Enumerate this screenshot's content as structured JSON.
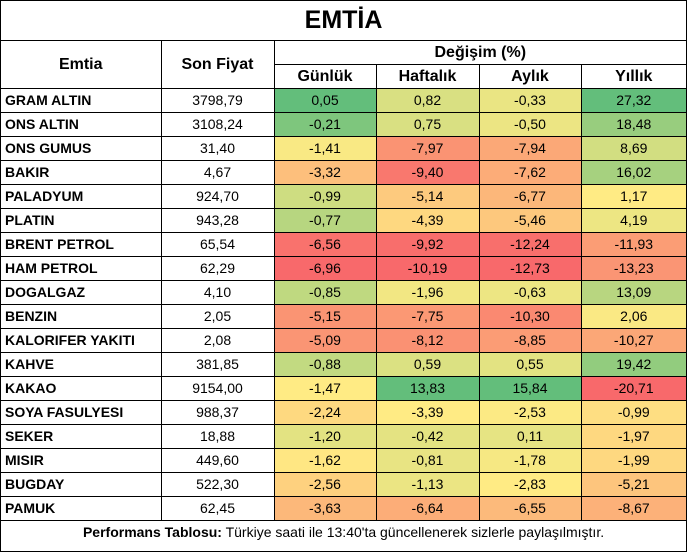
{
  "title": "EMTİA",
  "headers": {
    "commodity": "Emtia",
    "price": "Son Fiyat",
    "change_group": "Değişim (%)",
    "daily": "Günlük",
    "weekly": "Haftalık",
    "monthly": "Aylık",
    "yearly": "Yıllık"
  },
  "rows": [
    {
      "name": "GRAM ALTIN",
      "price": "3798,79",
      "daily": "0,05",
      "weekly": "0,82",
      "monthly": "-0,33",
      "yearly": "27,32"
    },
    {
      "name": "ONS ALTIN",
      "price": "3108,24",
      "daily": "-0,21",
      "weekly": "0,75",
      "monthly": "-0,50",
      "yearly": "18,48"
    },
    {
      "name": "ONS GUMUS",
      "price": "31,40",
      "daily": "-1,41",
      "weekly": "-7,97",
      "monthly": "-7,94",
      "yearly": "8,69"
    },
    {
      "name": "BAKIR",
      "price": "4,67",
      "daily": "-3,32",
      "weekly": "-9,40",
      "monthly": "-7,62",
      "yearly": "16,02"
    },
    {
      "name": "PALADYUM",
      "price": "924,70",
      "daily": "-0,99",
      "weekly": "-5,14",
      "monthly": "-6,77",
      "yearly": "1,17"
    },
    {
      "name": "PLATIN",
      "price": "943,28",
      "daily": "-0,77",
      "weekly": "-4,39",
      "monthly": "-5,46",
      "yearly": "4,19"
    },
    {
      "name": "BRENT PETROL",
      "price": "65,54",
      "daily": "-6,56",
      "weekly": "-9,92",
      "monthly": "-12,24",
      "yearly": "-11,93"
    },
    {
      "name": "HAM PETROL",
      "price": "62,29",
      "daily": "-6,96",
      "weekly": "-10,19",
      "monthly": "-12,73",
      "yearly": "-13,23"
    },
    {
      "name": "DOGALGAZ",
      "price": "4,10",
      "daily": "-0,85",
      "weekly": "-1,96",
      "monthly": "-0,63",
      "yearly": "13,09"
    },
    {
      "name": "BENZIN",
      "price": "2,05",
      "daily": "-5,15",
      "weekly": "-7,75",
      "monthly": "-10,30",
      "yearly": "2,06"
    },
    {
      "name": "KALORIFER YAKITI",
      "price": "2,08",
      "daily": "-5,09",
      "weekly": "-8,12",
      "monthly": "-8,85",
      "yearly": "-10,27"
    },
    {
      "name": "KAHVE",
      "price": "381,85",
      "daily": "-0,88",
      "weekly": "0,59",
      "monthly": "0,55",
      "yearly": "19,42"
    },
    {
      "name": "KAKAO",
      "price": "9154,00",
      "daily": "-1,47",
      "weekly": "13,83",
      "monthly": "15,84",
      "yearly": "-20,71"
    },
    {
      "name": "SOYA FASULYESI",
      "price": "988,37",
      "daily": "-2,24",
      "weekly": "-3,39",
      "monthly": "-2,53",
      "yearly": "-0,99"
    },
    {
      "name": "SEKER",
      "price": "18,88",
      "daily": "-1,20",
      "weekly": "-0,42",
      "monthly": "0,11",
      "yearly": "-1,97"
    },
    {
      "name": "MISIR",
      "price": "449,60",
      "daily": "-1,62",
      "weekly": "-0,81",
      "monthly": "-1,78",
      "yearly": "-1,99"
    },
    {
      "name": "BUGDAY",
      "price": "522,30",
      "daily": "-2,56",
      "weekly": "-1,13",
      "monthly": "-2,83",
      "yearly": "-5,21"
    },
    {
      "name": "PAMUK",
      "price": "62,45",
      "daily": "-3,63",
      "weekly": "-6,64",
      "monthly": "-6,55",
      "yearly": "-8,67"
    }
  ],
  "footer": {
    "label": "Performans Tablosu:",
    "text": " Türkiye saati ile 13:40'ta güncellenerek sizlerle paylaşılmıştır."
  }
}
